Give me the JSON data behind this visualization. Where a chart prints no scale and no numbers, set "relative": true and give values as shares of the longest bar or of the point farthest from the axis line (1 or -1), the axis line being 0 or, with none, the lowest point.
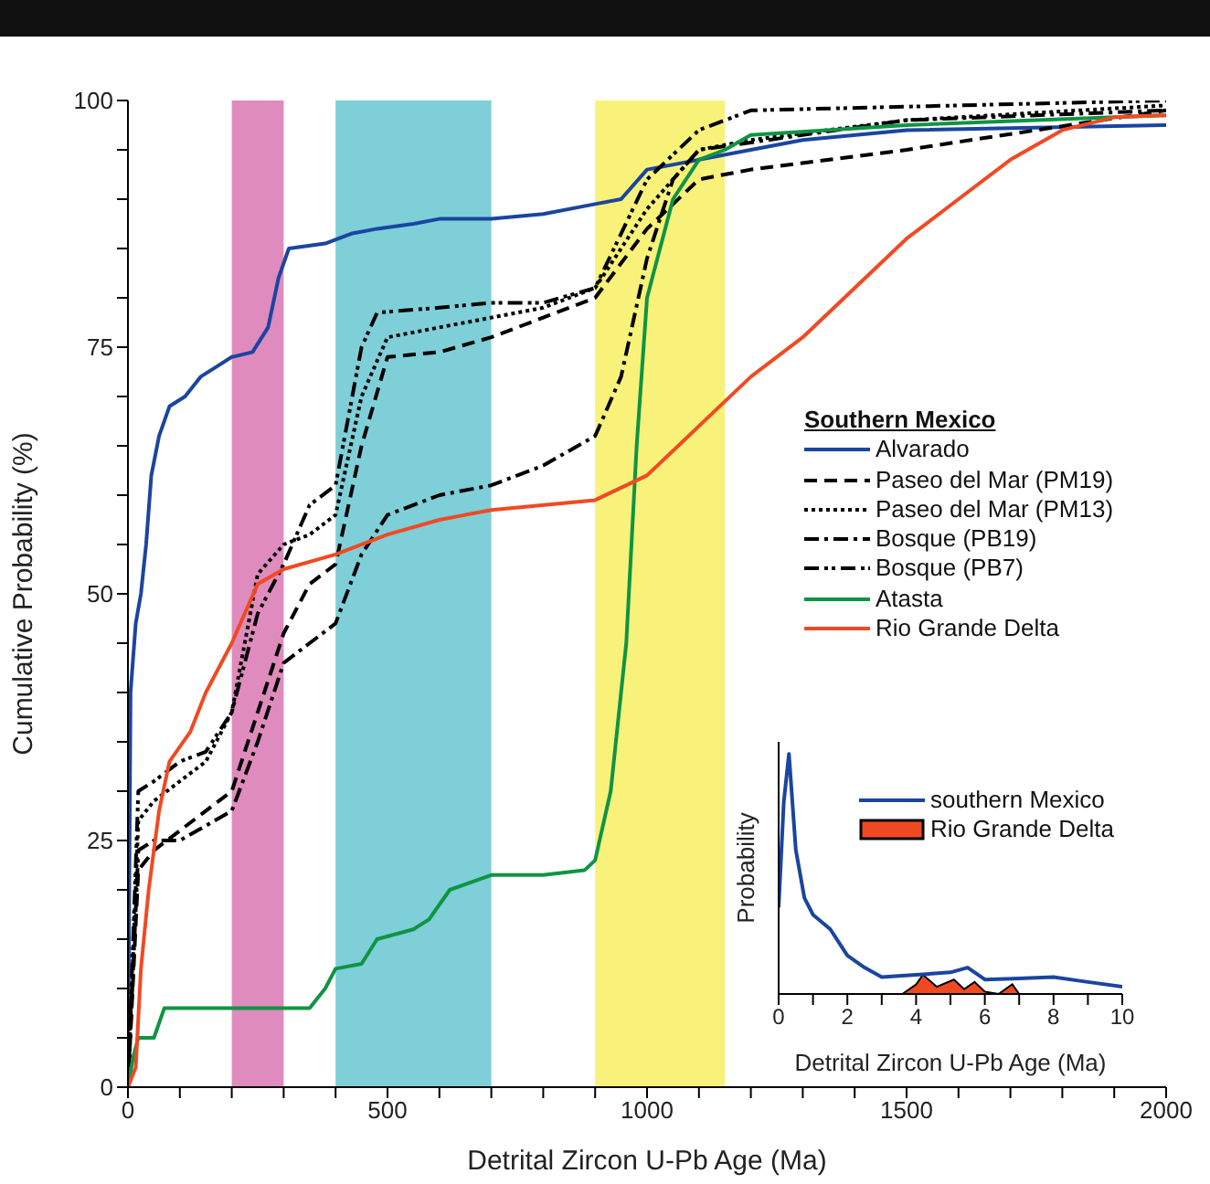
{
  "chart_data": [
    {
      "type": "line",
      "xlabel": "Detrital Zircon U-Pb Age (Ma)",
      "ylabel": "Cumulative Probability (%)",
      "legend_title": "Southern Mexico",
      "legend": "right",
      "xlim": [
        0,
        2000
      ],
      "ylim": [
        0,
        100
      ],
      "xticks": [
        0,
        {
          "value": 100,
          "label": null
        },
        {
          "value": 200,
          "label": null
        },
        {
          "value": 300,
          "label": null
        },
        {
          "value": 400,
          "label": null
        },
        500,
        {
          "value": 600,
          "label": null
        },
        {
          "value": 700,
          "label": null
        },
        {
          "value": 800,
          "label": null
        },
        {
          "value": 900,
          "label": null
        },
        1000,
        {
          "value": 1100,
          "label": null
        },
        {
          "value": 1200,
          "label": null
        },
        {
          "value": 1300,
          "label": null
        },
        {
          "value": 1400,
          "label": null
        },
        1500,
        {
          "value": 1600,
          "label": null
        },
        {
          "value": 1700,
          "label": null
        },
        {
          "value": 1800,
          "label": null
        },
        {
          "value": 1900,
          "label": null
        },
        2000
      ],
      "yticks": [
        0,
        {
          "value": 5,
          "label": null
        },
        {
          "value": 10,
          "label": null
        },
        {
          "value": 15,
          "label": null
        },
        {
          "value": 20,
          "label": null
        },
        25,
        {
          "value": 30,
          "label": null
        },
        {
          "value": 35,
          "label": null
        },
        {
          "value": 40,
          "label": null
        },
        {
          "value": 45,
          "label": null
        },
        50,
        {
          "value": 55,
          "label": null
        },
        {
          "value": 60,
          "label": null
        },
        {
          "value": 65,
          "label": null
        },
        {
          "value": 70,
          "label": null
        },
        75,
        {
          "value": 80,
          "label": null
        },
        {
          "value": 85,
          "label": null
        },
        {
          "value": 90,
          "label": null
        },
        {
          "value": 95,
          "label": null
        },
        100
      ],
      "bands": [
        {
          "axis": "x",
          "from": 200,
          "to": 300,
          "color": "#e08bbd"
        },
        {
          "axis": "x",
          "from": 400,
          "to": 700,
          "color": "#7ecfd8"
        },
        {
          "axis": "x",
          "from": 900,
          "to": 1150,
          "color": "#f8f27a"
        }
      ],
      "series": [
        {
          "name": "Alvarado",
          "color": "#1a45a0",
          "line_style": "solid",
          "x": [
            0,
            5,
            15,
            25,
            35,
            45,
            60,
            80,
            110,
            140,
            170,
            200,
            240,
            270,
            290,
            310,
            380,
            430,
            480,
            550,
            600,
            700,
            800,
            900,
            950,
            1000,
            1100,
            1200,
            1300,
            1500,
            2000
          ],
          "values": [
            0,
            40,
            47,
            50,
            55,
            62,
            66,
            69,
            70,
            72,
            73,
            74,
            74.5,
            77,
            82,
            85,
            85.5,
            86.5,
            87,
            87.5,
            88,
            88,
            88.5,
            89.5,
            90,
            93,
            94,
            95,
            96,
            97,
            97.5
          ]
        },
        {
          "name": "Paseo del Mar (PM19)",
          "color": "#000000",
          "line_style": "dashed",
          "x": [
            0,
            20,
            50,
            100,
            150,
            200,
            250,
            300,
            350,
            400,
            450,
            500,
            600,
            700,
            800,
            900,
            1000,
            1100,
            1200,
            1500,
            2000
          ],
          "values": [
            0,
            22,
            24,
            26,
            28,
            30,
            38,
            46,
            51,
            53,
            65,
            74,
            74.5,
            76,
            78,
            80,
            87,
            92,
            93,
            95,
            99
          ]
        },
        {
          "name": "Paseo del Mar (PM13)",
          "color": "#000000",
          "line_style": "dotted",
          "x": [
            0,
            20,
            50,
            100,
            150,
            200,
            250,
            300,
            350,
            400,
            450,
            500,
            600,
            700,
            800,
            900,
            1000,
            1100,
            1200,
            1500,
            2000
          ],
          "values": [
            0,
            27,
            29,
            31,
            33,
            38,
            52,
            55,
            56,
            58,
            70,
            76,
            77,
            78,
            79,
            81,
            89,
            95,
            96,
            98,
            99.5
          ]
        },
        {
          "name": "Bosque (PB19)",
          "color": "#000000",
          "line_style": "dashdot",
          "x": [
            0,
            20,
            50,
            100,
            200,
            250,
            300,
            350,
            400,
            450,
            500,
            600,
            700,
            800,
            900,
            950,
            1000,
            1050,
            1100,
            1500,
            2000
          ],
          "values": [
            0,
            24,
            25,
            25,
            28,
            35,
            43,
            45,
            47,
            54,
            58,
            60,
            61,
            63,
            66,
            72,
            84,
            92,
            95,
            98,
            99
          ]
        },
        {
          "name": "Bosque (PB7)",
          "color": "#000000",
          "line_style": "dashdotdot",
          "x": [
            0,
            20,
            50,
            100,
            150,
            200,
            250,
            300,
            350,
            400,
            450,
            480,
            600,
            700,
            800,
            900,
            1000,
            1100,
            1200,
            2000
          ],
          "values": [
            0,
            30,
            31,
            33,
            34,
            38,
            48,
            53,
            59,
            61,
            75,
            78.5,
            79,
            79.5,
            79.5,
            81,
            92,
            97,
            99,
            100
          ]
        },
        {
          "name": "Atasta",
          "color": "#0f9444",
          "line_style": "solid",
          "x": [
            0,
            10,
            20,
            50,
            70,
            350,
            380,
            400,
            450,
            480,
            550,
            580,
            620,
            700,
            800,
            880,
            900,
            930,
            960,
            980,
            1000,
            1050,
            1100,
            1150,
            1200,
            1500,
            2000
          ],
          "values": [
            0,
            3,
            5,
            5,
            8,
            8,
            10,
            12,
            12.5,
            15,
            16,
            17,
            20,
            21.5,
            21.5,
            22,
            23,
            30,
            45,
            65,
            80,
            90,
            94,
            95,
            96.5,
            97.5,
            98.5
          ]
        },
        {
          "name": "Rio Grande Delta",
          "color": "#f04a23",
          "line_style": "solid",
          "x": [
            0,
            15,
            25,
            40,
            60,
            80,
            120,
            150,
            200,
            250,
            300,
            400,
            500,
            600,
            700,
            900,
            1000,
            1100,
            1200,
            1300,
            1400,
            1500,
            1600,
            1700,
            1800,
            1900,
            2000
          ],
          "values": [
            0,
            2,
            12,
            20,
            28,
            33,
            36,
            40,
            45,
            51,
            52.5,
            54,
            56,
            57.5,
            58.5,
            59.5,
            62,
            67,
            72,
            76,
            81,
            86,
            90,
            94,
            97,
            98.3,
            98.5
          ]
        }
      ]
    },
    {
      "type": "line",
      "relative": true,
      "xlabel": "Detrital Zircon U-Pb Age (Ma)",
      "ylabel": "Probability",
      "legend": "top right",
      "tick_labels": "x",
      "xlim": [
        0,
        10
      ],
      "xticks": [
        0,
        {
          "value": 1,
          "label": null
        },
        2,
        {
          "value": 3,
          "label": null
        },
        4,
        {
          "value": 5,
          "label": null
        },
        6,
        {
          "value": 7,
          "label": null
        },
        8,
        {
          "value": 9,
          "label": null
        },
        10
      ],
      "series": [
        {
          "name": "southern Mexico",
          "color": "#1a45a0",
          "x": [
            0,
            0.15,
            0.3,
            0.5,
            0.75,
            1,
            1.5,
            2,
            2.5,
            3,
            4,
            5,
            5.5,
            5.8,
            6,
            7,
            8,
            9,
            10
          ],
          "values": [
            0.36,
            0.8,
            1,
            0.6,
            0.4,
            0.33,
            0.27,
            0.16,
            0.11,
            0.07,
            0.08,
            0.09,
            0.11,
            0.08,
            0.06,
            0.065,
            0.07,
            0.05,
            0.03
          ]
        },
        {
          "name": "Rio Grande Delta",
          "type": "area",
          "color": "#f04a23",
          "x": [
            3.6,
            4,
            4.2,
            4.6,
            5.1,
            5.4,
            5.7,
            6,
            6.4,
            6.8,
            7,
            10
          ],
          "values": [
            0,
            0.04,
            0.08,
            0.03,
            0.06,
            0.02,
            0.05,
            0.01,
            0,
            0.04,
            0,
            0
          ]
        }
      ]
    }
  ]
}
